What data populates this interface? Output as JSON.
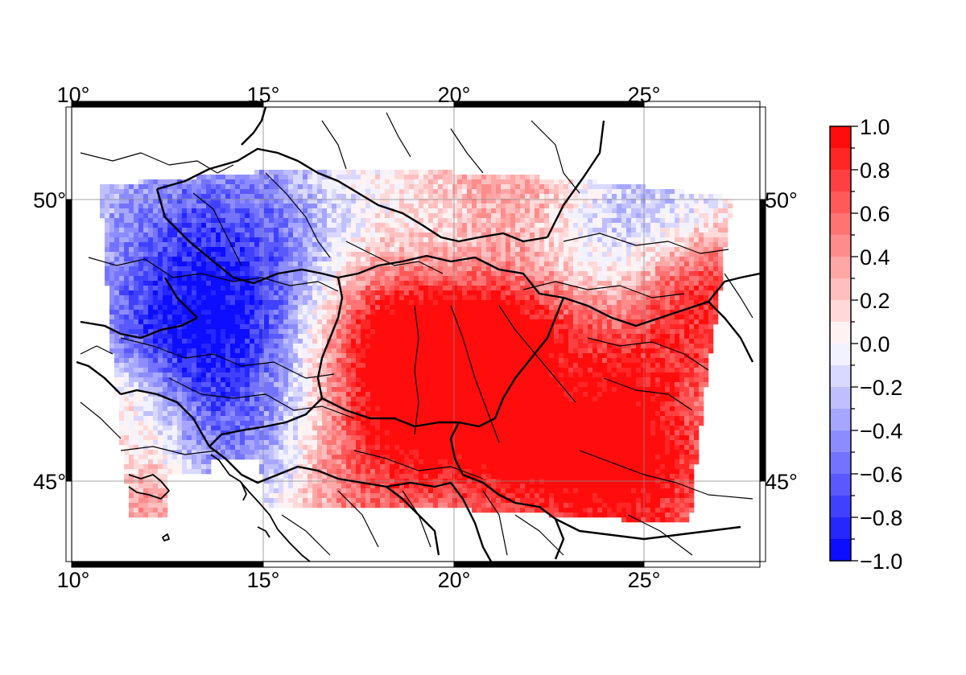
{
  "map": {
    "lon_range": [
      10,
      28
    ],
    "lat_range": [
      43.6,
      51.25
    ],
    "lon_ticks": [
      "10°",
      "15°",
      "20°",
      "25°"
    ],
    "lat_ticks": [
      "50°",
      "45°"
    ],
    "grid": true,
    "frame": "fancy black-and-white border",
    "features": [
      "country borders (thick black)",
      "rivers (thin black)",
      "coastline (black)"
    ],
    "field": {
      "description": "gridded pixel field over Central Europe",
      "extent_lon": [
        10.7,
        27.5
      ],
      "extent_lat": [
        44.1,
        50.6
      ],
      "pattern": "negative (blue) over Alps, Germany, Czechia, Poland, Ukraine; positive (red) over Pannonian basin (Hungary, Serbia), southern Romania, Po valley"
    }
  },
  "colorbar": {
    "range": [
      -1.0,
      1.0
    ],
    "labels": [
      "1.0",
      "0.8",
      "0.6",
      "0.4",
      "0.2",
      "0.0",
      "−0.2",
      "−0.4",
      "−0.6",
      "−0.8",
      "−1.0"
    ],
    "low_color": "#0000ff",
    "mid_color": "#ffffff",
    "high_color": "#ff0000",
    "steps": 20
  }
}
